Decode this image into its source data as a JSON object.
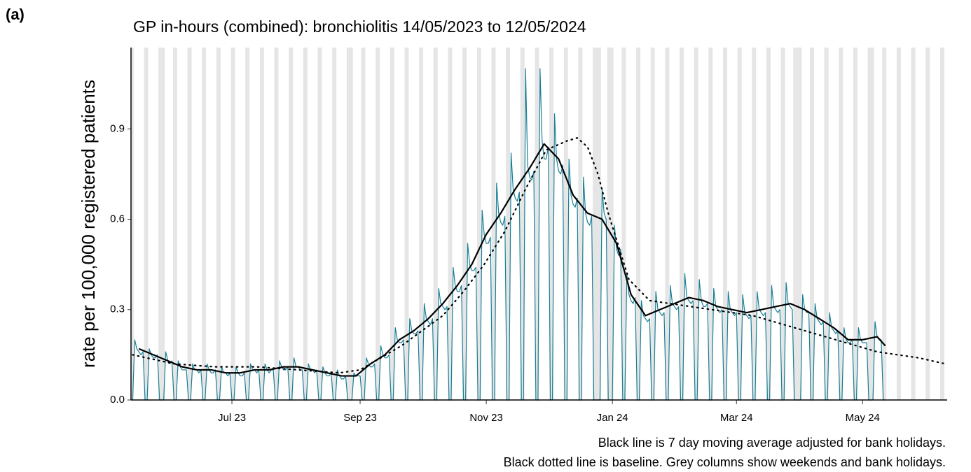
{
  "panel_label": "(a)",
  "chart_data": {
    "type": "line",
    "title": "GP in-hours (combined): bronchiolitis 14/05/2023 to 12/05/2024",
    "y_label": "rate per 100,000 registered patients",
    "notes": [
      "Black line is 7 day moving average adjusted for bank holidays.",
      "Black dotted line is baseline. Grey columns show weekends and bank holidays."
    ],
    "xlim": [
      -0.8,
      393.9
    ],
    "xticks": [
      {
        "value": 48,
        "label": "Jul 23"
      },
      {
        "value": 110,
        "label": "Sep 23"
      },
      {
        "value": 171,
        "label": "Nov 23"
      },
      {
        "value": 232,
        "label": "Jan 24"
      },
      {
        "value": 292,
        "label": "Mar 24"
      },
      {
        "value": 353,
        "label": "May 24"
      }
    ],
    "ylim": [
      0,
      1.17
    ],
    "yticks": [
      {
        "value": 0,
        "label": "0.0"
      },
      0.3,
      0.6,
      0.9
    ],
    "shade_color": "#e5e5e5",
    "shaded_days": [
      0,
      6,
      7,
      13,
      14,
      20,
      21,
      27,
      28,
      34,
      35,
      41,
      42,
      48,
      49,
      55,
      56,
      62,
      63,
      69,
      70,
      76,
      77,
      83,
      84,
      90,
      91,
      97,
      98,
      104,
      105,
      111,
      112,
      118,
      119,
      125,
      126,
      132,
      133,
      139,
      140,
      146,
      147,
      153,
      154,
      160,
      161,
      167,
      168,
      174,
      175,
      181,
      182,
      188,
      189,
      195,
      196,
      202,
      203,
      209,
      210,
      216,
      217,
      223,
      224,
      230,
      231,
      237,
      238,
      244,
      245,
      251,
      252,
      258,
      259,
      265,
      266,
      272,
      273,
      279,
      280,
      286,
      287,
      293,
      294,
      300,
      301,
      307,
      308,
      314,
      315,
      321,
      322,
      328,
      329,
      335,
      336,
      342,
      343,
      349,
      350,
      356,
      357,
      363,
      364,
      370,
      371,
      377,
      378,
      384,
      385,
      391,
      392,
      15,
      106,
      225,
      226,
      232,
      320,
      323,
      358
    ],
    "series": [
      {
        "color": "#1a7f95",
        "width": 1.2,
        "dash": "solid",
        "x": [
          0,
          1,
          2,
          3,
          4,
          5,
          6,
          7,
          8,
          9,
          10,
          11,
          12,
          13,
          14,
          15,
          16,
          17,
          18,
          19,
          20,
          21,
          22,
          23,
          24,
          25,
          26,
          27,
          28,
          29,
          30,
          31,
          32,
          33,
          34,
          35,
          36,
          37,
          38,
          39,
          40,
          41,
          42,
          43,
          44,
          45,
          46,
          47,
          48,
          49,
          50,
          51,
          52,
          53,
          54,
          55,
          56,
          57,
          58,
          59,
          60,
          61,
          62,
          63,
          64,
          65,
          66,
          67,
          68,
          69,
          70,
          71,
          72,
          73,
          74,
          75,
          76,
          77,
          78,
          79,
          80,
          81,
          82,
          83,
          84,
          85,
          86,
          87,
          88,
          89,
          90,
          91,
          92,
          93,
          94,
          95,
          96,
          97,
          98,
          99,
          100,
          101,
          102,
          103,
          104,
          105,
          106,
          107,
          108,
          109,
          110,
          111,
          112,
          113,
          114,
          115,
          116,
          117,
          118,
          119,
          120,
          121,
          122,
          123,
          124,
          125,
          126,
          127,
          128,
          129,
          130,
          131,
          132,
          133,
          134,
          135,
          136,
          137,
          138,
          139,
          140,
          141,
          142,
          143,
          144,
          145,
          146,
          147,
          148,
          149,
          150,
          151,
          152,
          153,
          154,
          155,
          156,
          157,
          158,
          159,
          160,
          161,
          162,
          163,
          164,
          165,
          166,
          167,
          168,
          169,
          170,
          171,
          172,
          173,
          174,
          175,
          176,
          177,
          178,
          179,
          180,
          181,
          182,
          183,
          184,
          185,
          186,
          187,
          188,
          189,
          190,
          191,
          192,
          193,
          194,
          195,
          196,
          197,
          198,
          199,
          200,
          201,
          202,
          203,
          204,
          205,
          206,
          207,
          208,
          209,
          210,
          211,
          212,
          213,
          214,
          215,
          216,
          217,
          218,
          219,
          220,
          221,
          222,
          223,
          224,
          225,
          226,
          227,
          228,
          229,
          230,
          231,
          232,
          233,
          234,
          235,
          236,
          237,
          238,
          239,
          240,
          241,
          242,
          243,
          244,
          245,
          246,
          247,
          248,
          249,
          250,
          251,
          252,
          253,
          254,
          255,
          256,
          257,
          258,
          259,
          260,
          261,
          262,
          263,
          264,
          265,
          266,
          267,
          268,
          269,
          270,
          271,
          272,
          273,
          274,
          275,
          276,
          277,
          278,
          279,
          280,
          281,
          282,
          283,
          284,
          285,
          286,
          287,
          288,
          289,
          290,
          291,
          292,
          293,
          294,
          295,
          296,
          297,
          298,
          299,
          300,
          301,
          302,
          303,
          304,
          305,
          306,
          307,
          308,
          309,
          310,
          311,
          312,
          313,
          314,
          315,
          316,
          317,
          318,
          319,
          320,
          321,
          322,
          323,
          324,
          325,
          326,
          327,
          328,
          329,
          330,
          331,
          332,
          333,
          334,
          335,
          336,
          337,
          338,
          339,
          340,
          341,
          342,
          343,
          344,
          345,
          346,
          347,
          348,
          349,
          350,
          351,
          352,
          353,
          354,
          355,
          356,
          357,
          358,
          359,
          360,
          361,
          362,
          363,
          364
        ],
        "values": [
          0,
          0.2,
          0.17,
          0.16,
          0.15,
          0.16,
          0,
          0,
          0.17,
          0.15,
          0.14,
          0.14,
          0.15,
          0,
          0,
          0,
          0.16,
          0.13,
          0.12,
          0.13,
          0,
          0,
          0.13,
          0.11,
          0.1,
          0.1,
          0.1,
          0,
          0,
          0.12,
          0.1,
          0.1,
          0.09,
          0.1,
          0,
          0,
          0.12,
          0.1,
          0.09,
          0.09,
          0.1,
          0,
          0,
          0.11,
          0.09,
          0.09,
          0.08,
          0.09,
          0,
          0,
          0.11,
          0.09,
          0.08,
          0.08,
          0.09,
          0,
          0,
          0.12,
          0.1,
          0.1,
          0.09,
          0.1,
          0,
          0,
          0.12,
          0.1,
          0.09,
          0.1,
          0.1,
          0,
          0,
          0.13,
          0.11,
          0.1,
          0.1,
          0.11,
          0,
          0,
          0.14,
          0.11,
          0.11,
          0.1,
          0.1,
          0,
          0,
          0.12,
          0.1,
          0.1,
          0.09,
          0.1,
          0,
          0,
          0.11,
          0.09,
          0.08,
          0.08,
          0.09,
          0,
          0,
          0.1,
          0.08,
          0.07,
          0.07,
          0.08,
          0,
          0,
          0,
          0.09,
          0.08,
          0.08,
          0.08,
          0,
          0,
          0.14,
          0.12,
          0.11,
          0.11,
          0.12,
          0,
          0,
          0.18,
          0.15,
          0.14,
          0.14,
          0.15,
          0,
          0,
          0.24,
          0.2,
          0.19,
          0.19,
          0.2,
          0,
          0,
          0.27,
          0.23,
          0.22,
          0.22,
          0.23,
          0,
          0,
          0.32,
          0.27,
          0.26,
          0.25,
          0.27,
          0,
          0,
          0.37,
          0.32,
          0.31,
          0.3,
          0.31,
          0,
          0,
          0.44,
          0.38,
          0.36,
          0.36,
          0.38,
          0,
          0,
          0.52,
          0.45,
          0.43,
          0.43,
          0.44,
          0,
          0,
          0.63,
          0.55,
          0.52,
          0.52,
          0.54,
          0,
          0,
          0.72,
          0.62,
          0.59,
          0.58,
          0.61,
          0,
          0,
          0.82,
          0.7,
          0.67,
          0.66,
          0.69,
          0,
          0,
          1.1,
          0.78,
          0.74,
          0.73,
          0.76,
          0,
          0,
          1.1,
          0.86,
          0.8,
          0.8,
          0.84,
          0,
          0,
          0.95,
          0.8,
          0.76,
          0.75,
          0.78,
          0,
          0,
          0.8,
          0.68,
          0.65,
          0.64,
          0.67,
          0,
          0,
          0.74,
          0.62,
          0.59,
          0.58,
          0.61,
          0,
          0,
          0,
          0,
          0.7,
          0.62,
          0.6,
          0,
          0,
          0,
          0.58,
          0.5,
          0.48,
          0.5,
          0,
          0,
          0.42,
          0.35,
          0.33,
          0.32,
          0.34,
          0,
          0,
          0.33,
          0.28,
          0.27,
          0.26,
          0.27,
          0,
          0,
          0.36,
          0.3,
          0.29,
          0.28,
          0.29,
          0,
          0,
          0.38,
          0.32,
          0.31,
          0.3,
          0.31,
          0,
          0,
          0.42,
          0.34,
          0.33,
          0.32,
          0.33,
          0,
          0,
          0.4,
          0.33,
          0.31,
          0.31,
          0.32,
          0,
          0,
          0.37,
          0.31,
          0.3,
          0.29,
          0.3,
          0,
          0,
          0.36,
          0.3,
          0.29,
          0.28,
          0.29,
          0,
          0,
          0.35,
          0.29,
          0.28,
          0.27,
          0.28,
          0,
          0,
          0.36,
          0.3,
          0.29,
          0.28,
          0.29,
          0,
          0,
          0.38,
          0.31,
          0.3,
          0.29,
          0.3,
          0,
          0,
          0.39,
          0.32,
          0.31,
          0.3,
          0,
          0,
          0,
          0,
          0.35,
          0.3,
          0.29,
          0.29,
          0,
          0,
          0.32,
          0.27,
          0.26,
          0.25,
          0.26,
          0,
          0,
          0.29,
          0.24,
          0.23,
          0.22,
          0.23,
          0,
          0,
          0.24,
          0.2,
          0.19,
          0.19,
          0.2,
          0,
          0,
          0.24,
          0.2,
          0.19,
          0.19,
          0.19,
          0,
          0,
          0,
          0.26,
          0.21,
          0.2,
          0.2,
          0,
          0
        ]
      },
      {
        "color": "#000000",
        "width": 2.2,
        "dash": "solid",
        "x": [
          3,
          10,
          17,
          24,
          31,
          38,
          45,
          52,
          59,
          66,
          73,
          80,
          87,
          94,
          101,
          108,
          115,
          122,
          129,
          136,
          143,
          150,
          157,
          164,
          171,
          178,
          185,
          192,
          199,
          206,
          213,
          220,
          227,
          234,
          241,
          248,
          255,
          262,
          269,
          276,
          283,
          290,
          297,
          304,
          311,
          318,
          325,
          332,
          339,
          346,
          353,
          360,
          364
        ],
        "values": [
          0.17,
          0.15,
          0.13,
          0.11,
          0.1,
          0.1,
          0.09,
          0.09,
          0.1,
          0.1,
          0.11,
          0.11,
          0.1,
          0.09,
          0.08,
          0.08,
          0.12,
          0.15,
          0.2,
          0.23,
          0.27,
          0.32,
          0.38,
          0.45,
          0.55,
          0.62,
          0.7,
          0.77,
          0.85,
          0.8,
          0.68,
          0.62,
          0.6,
          0.52,
          0.35,
          0.28,
          0.3,
          0.32,
          0.34,
          0.33,
          0.31,
          0.3,
          0.29,
          0.3,
          0.31,
          0.32,
          0.3,
          0.27,
          0.24,
          0.2,
          0.2,
          0.21,
          0.18
        ]
      },
      {
        "color": "#000000",
        "width": 2.2,
        "dash": "dotted",
        "x": [
          0,
          20,
          40,
          60,
          80,
          100,
          110,
          120,
          130,
          140,
          150,
          160,
          170,
          180,
          190,
          200,
          210,
          215,
          220,
          225,
          230,
          240,
          250,
          260,
          270,
          280,
          290,
          300,
          310,
          320,
          330,
          340,
          350,
          360,
          370,
          380,
          393
        ],
        "values": [
          0.15,
          0.12,
          0.11,
          0.11,
          0.1,
          0.09,
          0.1,
          0.14,
          0.18,
          0.23,
          0.28,
          0.36,
          0.45,
          0.56,
          0.7,
          0.83,
          0.86,
          0.87,
          0.84,
          0.75,
          0.62,
          0.4,
          0.33,
          0.32,
          0.31,
          0.3,
          0.29,
          0.28,
          0.26,
          0.24,
          0.22,
          0.2,
          0.18,
          0.16,
          0.15,
          0.14,
          0.12
        ]
      }
    ]
  }
}
